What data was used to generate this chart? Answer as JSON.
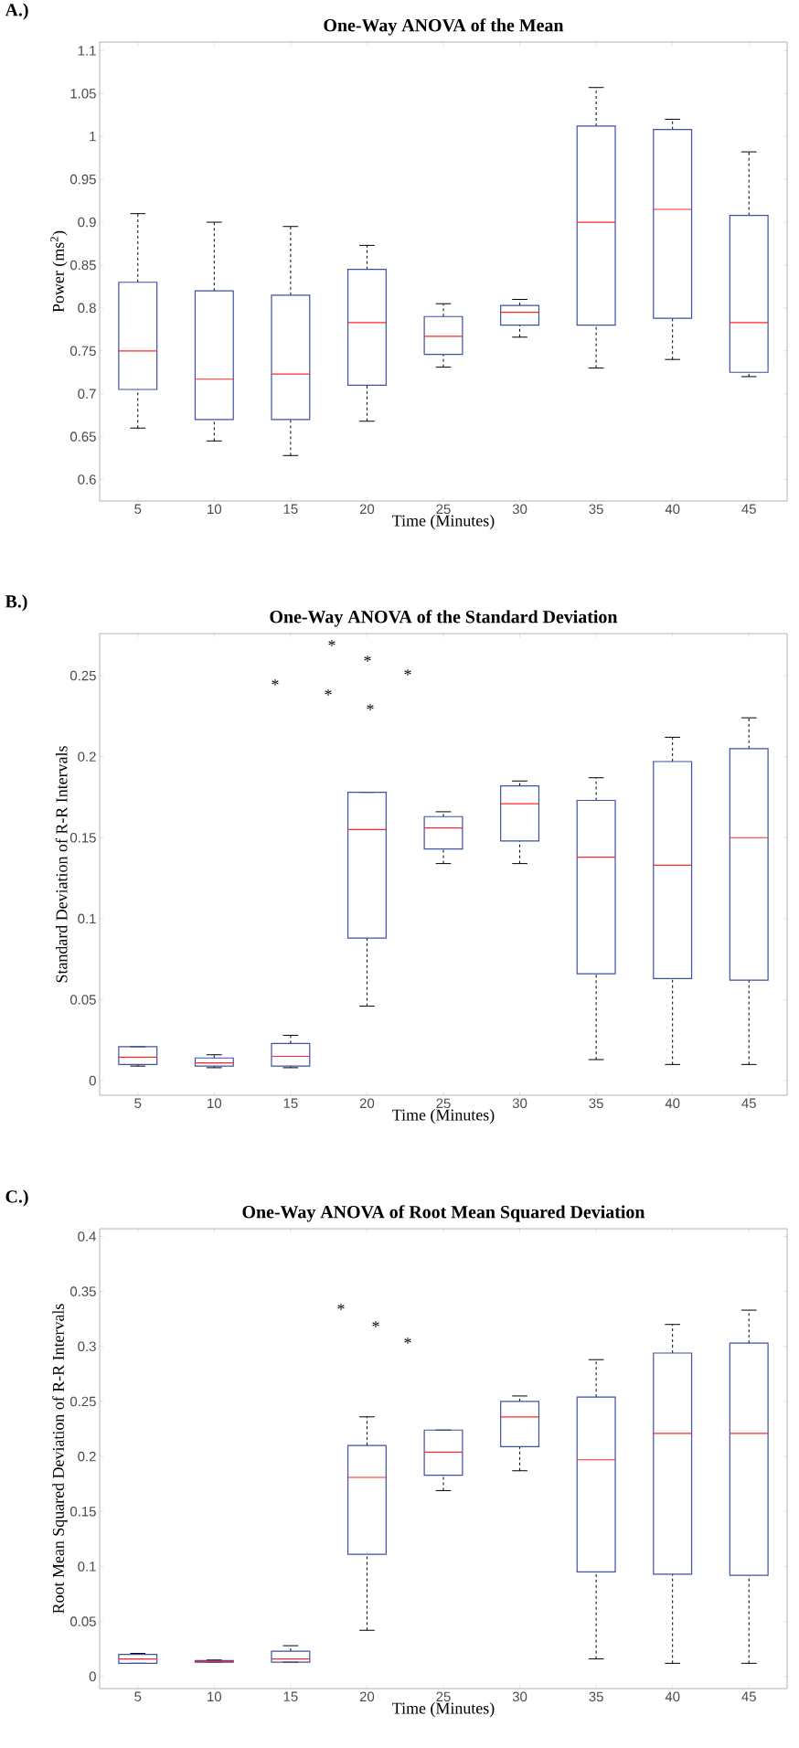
{
  "chart_data": [
    {
      "type": "box",
      "title": "One-Way ANOVA of the Mean",
      "xlabel": "Time (Minutes)",
      "ylabel": "Power (ms$^{2}$)",
      "annotations": [
        "A.)"
      ],
      "x": [
        5,
        10,
        15,
        20,
        25,
        30,
        35,
        40,
        45
      ],
      "xlim": [
        2.5,
        47.5
      ],
      "xticks": [
        5,
        10,
        15,
        20,
        25,
        30,
        35,
        40,
        45
      ],
      "ylim": [
        0.575,
        1.11
      ],
      "yticks": [
        0.6,
        0.65,
        0.7,
        0.75,
        0.8,
        0.85,
        0.9,
        0.95,
        1,
        1.05,
        1.1
      ],
      "color": "#3f51a5",
      "grid": false,
      "boxes": [
        {
          "low": 0.66,
          "q1": 0.705,
          "median": 0.75,
          "q3": 0.83,
          "high": 0.91
        },
        {
          "low": 0.645,
          "q1": 0.67,
          "median": 0.717,
          "q3": 0.82,
          "high": 0.9
        },
        {
          "low": 0.628,
          "q1": 0.67,
          "median": 0.723,
          "q3": 0.815,
          "high": 0.895
        },
        {
          "low": 0.668,
          "q1": 0.71,
          "median": 0.783,
          "q3": 0.845,
          "high": 0.873
        },
        {
          "low": 0.731,
          "q1": 0.746,
          "median": 0.767,
          "q3": 0.79,
          "high": 0.805
        },
        {
          "low": 0.766,
          "q1": 0.78,
          "median": 0.795,
          "q3": 0.803,
          "high": 0.81
        },
        {
          "low": 0.73,
          "q1": 0.78,
          "median": 0.9,
          "q3": 1.012,
          "high": 1.057
        },
        {
          "low": 0.74,
          "q1": 0.788,
          "median": 0.915,
          "q3": 1.008,
          "high": 1.02
        },
        {
          "low": 0.72,
          "q1": 0.725,
          "median": 0.783,
          "q3": 0.908,
          "high": 0.982
        }
      ]
    },
    {
      "type": "box",
      "title": "One-Way ANOVA of the Standard Deviation",
      "xlabel": "Time (Minutes)",
      "ylabel": "Standard Deviation of R-R Intervals",
      "annotations": [
        "B.)",
        "*",
        "*",
        "*",
        "*",
        "*",
        "*"
      ],
      "x": [
        5,
        10,
        15,
        20,
        25,
        30,
        35,
        40,
        45
      ],
      "xlim": [
        2.5,
        47.5
      ],
      "xticks": [
        5,
        10,
        15,
        20,
        25,
        30,
        35,
        40,
        45
      ],
      "ylim": [
        -0.009,
        0.276
      ],
      "yticks": [
        0,
        0.05,
        0.1,
        0.15,
        0.2,
        0.25
      ],
      "color": "#3f51a5",
      "grid": false,
      "boxes": [
        {
          "low": 0.009,
          "q1": 0.01,
          "median": 0.0145,
          "q3": 0.021,
          "high": 0.021
        },
        {
          "low": 0.008,
          "q1": 0.009,
          "median": 0.011,
          "q3": 0.014,
          "high": 0.016
        },
        {
          "low": 0.008,
          "q1": 0.009,
          "median": 0.015,
          "q3": 0.023,
          "high": 0.028
        },
        {
          "low": 0.046,
          "q1": 0.088,
          "median": 0.155,
          "q3": 0.178,
          "high": 0.178
        },
        {
          "low": 0.134,
          "q1": 0.143,
          "median": 0.156,
          "q3": 0.163,
          "high": 0.166
        },
        {
          "low": 0.134,
          "q1": 0.148,
          "median": 0.171,
          "q3": 0.182,
          "high": 0.185
        },
        {
          "low": 0.013,
          "q1": 0.066,
          "median": 0.138,
          "q3": 0.173,
          "high": 0.187
        },
        {
          "low": 0.01,
          "q1": 0.063,
          "median": 0.133,
          "q3": 0.197,
          "high": 0.212
        },
        {
          "low": 0.01,
          "q1": 0.062,
          "median": 0.15,
          "q3": 0.205,
          "high": 0.224
        }
      ]
    },
    {
      "type": "box",
      "title": "One-Way ANOVA of Root Mean Squared Deviation",
      "xlabel": "Time (Minutes)",
      "ylabel": "Root Mean Squared Deviation of R-R Intervals",
      "annotations": [
        "C.)",
        "*",
        "*",
        "*"
      ],
      "x": [
        5,
        10,
        15,
        20,
        25,
        30,
        35,
        40,
        45
      ],
      "xlim": [
        2.5,
        47.5
      ],
      "xticks": [
        5,
        10,
        15,
        20,
        25,
        30,
        35,
        40,
        45
      ],
      "ylim": [
        -0.011,
        0.407
      ],
      "yticks": [
        0,
        0.05,
        0.1,
        0.15,
        0.2,
        0.25,
        0.3,
        0.35,
        0.4
      ],
      "color": "#3f51a5",
      "grid": false,
      "boxes": [
        {
          "low": 0.012,
          "q1": 0.012,
          "median": 0.016,
          "q3": 0.02,
          "high": 0.021
        },
        {
          "low": 0.013,
          "q1": 0.013,
          "median": 0.0135,
          "q3": 0.0145,
          "high": 0.015
        },
        {
          "low": 0.013,
          "q1": 0.013,
          "median": 0.016,
          "q3": 0.023,
          "high": 0.028
        },
        {
          "low": 0.042,
          "q1": 0.111,
          "median": 0.181,
          "q3": 0.21,
          "high": 0.236
        },
        {
          "low": 0.169,
          "q1": 0.183,
          "median": 0.204,
          "q3": 0.224,
          "high": 0.224
        },
        {
          "low": 0.187,
          "q1": 0.209,
          "median": 0.236,
          "q3": 0.25,
          "high": 0.255
        },
        {
          "low": 0.016,
          "q1": 0.095,
          "median": 0.197,
          "q3": 0.254,
          "high": 0.288
        },
        {
          "low": 0.012,
          "q1": 0.093,
          "median": 0.221,
          "q3": 0.294,
          "high": 0.32
        },
        {
          "low": 0.012,
          "q1": 0.092,
          "median": 0.221,
          "q3": 0.303,
          "high": 0.333
        }
      ]
    }
  ]
}
